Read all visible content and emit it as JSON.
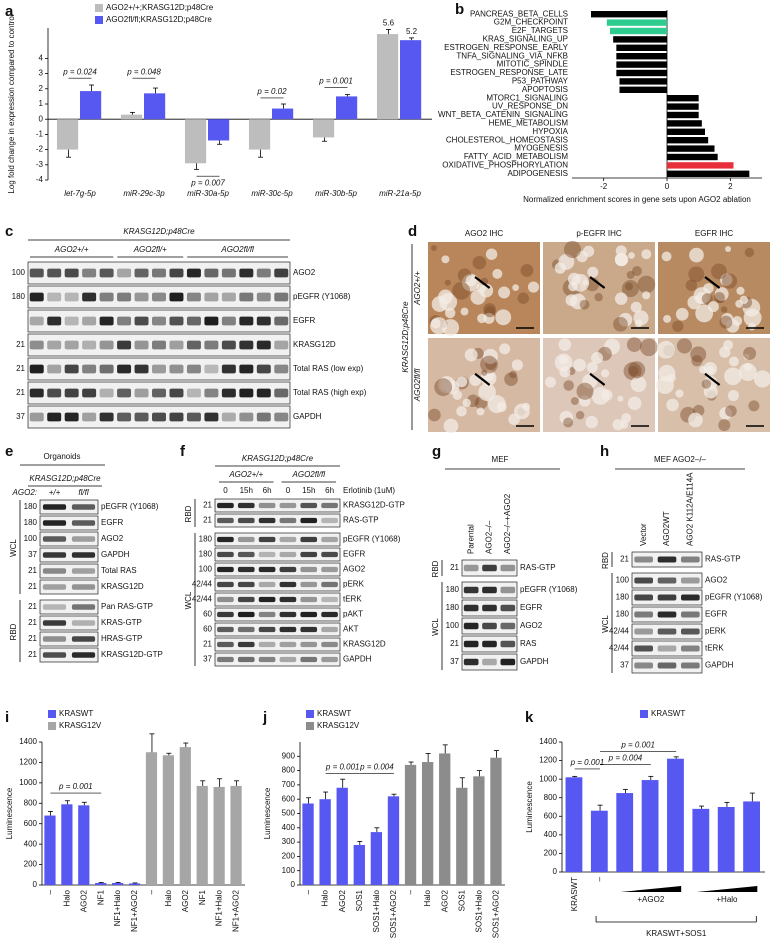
{
  "chart_data": [
    {
      "letter": "a",
      "type": "bar",
      "ylabel": "Log fold change in expression compared to control",
      "categories": [
        "let-7g-5p",
        "miR-29c-3p",
        "miR-30a-5p",
        "miR-30c-5p",
        "miR-30b-5p",
        "miR-21a-5p"
      ],
      "series": [
        {
          "name": "AGO2+/+;KRASG12D;p48Cre",
          "color": "#bdbdbd",
          "values": [
            -2.0,
            0.3,
            -2.9,
            -2.0,
            -1.2,
            5.6
          ],
          "errors": [
            0.5,
            0.15,
            0.4,
            0.5,
            0.25,
            0.3
          ],
          "value_labels": [
            null,
            null,
            null,
            null,
            null,
            "5.6"
          ]
        },
        {
          "name": "AGO2fl/fl;KRASG12D;p48Cre",
          "color": "#5757f2",
          "values": [
            1.85,
            1.7,
            -1.4,
            0.7,
            1.5,
            5.2
          ],
          "errors": [
            0.4,
            0.35,
            0.25,
            0.3,
            0.12,
            0.15
          ],
          "value_labels": [
            null,
            null,
            null,
            null,
            null,
            "5.2"
          ]
        }
      ],
      "ylim": [
        -4,
        6
      ],
      "yticks": [
        -4,
        -3,
        -2,
        -1,
        0,
        1,
        2,
        3,
        4
      ],
      "annotations": [
        "p = 0.024",
        "p = 0.048",
        "p = 0.007",
        "p = 0.02",
        "p = 0.001"
      ]
    },
    {
      "letter": "b",
      "type": "hbar",
      "xlabel": "Normalized enrichment scores in gene sets upon AGO2 ablation",
      "categories": [
        "PANCREAS_BETA_CELLS",
        "G2M_CHECKPOINT",
        "E2F_TARGETS",
        "KRAS_SIGNALING_UP",
        "ESTROGEN_RESPONSE_EARLY",
        "TNFA_SIGNALING_VIA_NFKB",
        "MITOTIC_SPINDLE",
        "ESTROGEN_RESPONSE_LATE",
        "P53_PATHWAY",
        "APOPTOSIS",
        "MTORC1_SIGNALING",
        "UV_RESPONSE_DN",
        "WNT_BETA_CATENIN_SIGNALING",
        "HEME_METABOLISM",
        "HYPOXIA",
        "CHOLESTEROL_HOMEOSTASIS",
        "MYOGENESIS",
        "FATTY_ACID_METABOLISM",
        "OXIDATIVE_PHOSPHORYLATION",
        "ADIPOGENESIS"
      ],
      "values": [
        -2.4,
        -1.9,
        -1.8,
        -1.7,
        -1.6,
        -1.6,
        -1.6,
        -1.6,
        -1.5,
        -1.5,
        1.0,
        1.0,
        1.0,
        1.1,
        1.2,
        1.3,
        1.5,
        1.6,
        2.1,
        2.6
      ],
      "colors": [
        "#000000",
        "#2ecc8e",
        "#2ecc8e",
        "#000000",
        "#000000",
        "#000000",
        "#000000",
        "#000000",
        "#000000",
        "#000000",
        "#000000",
        "#000000",
        "#000000",
        "#000000",
        "#000000",
        "#000000",
        "#000000",
        "#000000",
        "#e8303a",
        "#000000"
      ],
      "xlim": [
        -3,
        3
      ],
      "xticks": [
        -2,
        0,
        2
      ]
    },
    {
      "letter": "i",
      "type": "bar",
      "ylabel": "Luminescence",
      "categories": [
        "–",
        "Halo",
        "AGO2",
        "NF1",
        "NF1+Halo",
        "NF1+AGO2",
        "–",
        "Halo",
        "AGO2",
        "NF1",
        "NF1+Halo",
        "NF1+AGO2"
      ],
      "series": [
        {
          "name": "KRASWT",
          "color": "#5757f2",
          "values": [
            680,
            790,
            780,
            20,
            20,
            15,
            null,
            null,
            null,
            null,
            null,
            null
          ],
          "errors": [
            40,
            35,
            30,
            5,
            5,
            5,
            null,
            null,
            null,
            null,
            null,
            null
          ]
        },
        {
          "name": "KRASG12V",
          "color": "#a6a6a6",
          "values": [
            null,
            null,
            null,
            null,
            null,
            null,
            1300,
            1270,
            1350,
            970,
            960,
            970
          ],
          "errors": [
            null,
            null,
            null,
            null,
            null,
            null,
            180,
            20,
            40,
            50,
            80,
            50
          ]
        }
      ],
      "ylim": [
        0,
        1400
      ],
      "yticks": [
        0,
        200,
        400,
        600,
        800,
        1000,
        1200,
        1400
      ],
      "annotations": [
        "p = 0.001"
      ]
    },
    {
      "letter": "j",
      "type": "bar",
      "ylabel": "Luminescence",
      "categories": [
        "–",
        "Halo",
        "AGO2",
        "SOS1",
        "SOS1+Halo",
        "SOS1+AGO2",
        "–",
        "Halo",
        "AGO2",
        "SOS1",
        "SOS1+Halo",
        "SOS1+AGO2"
      ],
      "series": [
        {
          "name": "KRASWT",
          "color": "#5757f2",
          "values": [
            570,
            600,
            680,
            280,
            370,
            620,
            null,
            null,
            null,
            null,
            null,
            null
          ],
          "errors": [
            40,
            50,
            60,
            25,
            30,
            15,
            null,
            null,
            null,
            null,
            null,
            null
          ]
        },
        {
          "name": "KRASG12V",
          "color": "#8c8c8c",
          "values": [
            null,
            null,
            null,
            null,
            null,
            null,
            840,
            860,
            920,
            680,
            760,
            890
          ],
          "errors": [
            null,
            null,
            null,
            null,
            null,
            null,
            20,
            60,
            60,
            70,
            40,
            50
          ]
        }
      ],
      "ylim": [
        0,
        1000
      ],
      "yticks": [
        0,
        100,
        200,
        300,
        400,
        500,
        600,
        700,
        800,
        900
      ],
      "annotations": [
        "p = 0.001",
        "p = 0.004"
      ]
    },
    {
      "letter": "k",
      "type": "bar",
      "ylabel": "Luminescence",
      "categories": [
        "KRASWT",
        "–",
        null,
        null,
        null,
        null,
        null,
        null
      ],
      "series": [
        {
          "name": "KRASWT",
          "color": "#5757f2",
          "values": [
            1020,
            660,
            850,
            990,
            1220,
            680,
            700,
            760
          ],
          "errors": [
            10,
            60,
            40,
            40,
            20,
            30,
            50,
            90
          ]
        }
      ],
      "ylim": [
        0,
        1400
      ],
      "yticks": [
        0,
        200,
        400,
        600,
        800,
        1000,
        1200,
        1400
      ],
      "annotations": [
        "p = 0.001",
        "p = 0.004",
        "p = 0.001",
        "+AGO2",
        "+Halo",
        "KRASWT+SOS1"
      ]
    }
  ],
  "ihc": {
    "letter": "d",
    "columns": [
      "AGO2 IHC",
      "p-EGFR IHC",
      "EGFR IHC"
    ],
    "rows": [
      "AGO2+/+",
      "AGO2fl/fl"
    ],
    "genotype": "KRASG12D;p48Cre"
  },
  "blots": {
    "c": {
      "letter": "c",
      "header": "KRASG12D;p48Cre",
      "groups": [
        "AGO2+/+",
        "AGO2fl/+",
        "AGO2fl/fl"
      ],
      "sections": [
        {
          "rows": [
            {
              "mw": "100",
              "label": "AGO2"
            },
            {
              "mw": "180",
              "label": "pEGFR (Y1068)"
            },
            {
              "label": "EGFR"
            },
            {
              "mw": "21",
              "label": "KRASG12D"
            },
            {
              "mw": "21",
              "label": "Total RAS (low exp)"
            },
            {
              "mw": "21",
              "label": "Total RAS (high exp)"
            },
            {
              "mw": "37",
              "label": "GAPDH"
            }
          ]
        }
      ]
    },
    "e": {
      "letter": "e",
      "title": "Organoids",
      "header": "KRASG12D;p48Cre",
      "lane_title": "AGO2:",
      "lanes": [
        "+/+",
        "fl/fl"
      ],
      "sections": [
        {
          "name": "WCL",
          "rows": [
            {
              "mw": "180",
              "label": "pEGFR (Y1068)"
            },
            {
              "mw": "180",
              "label": "EGFR"
            },
            {
              "mw": "100",
              "label": "AGO2"
            },
            {
              "mw": "37",
              "label": "GAPDH"
            },
            {
              "mw": "21",
              "label": "Total RAS"
            },
            {
              "mw": "21",
              "label": "KRASG12D"
            }
          ]
        },
        {
          "name": "RBD",
          "rows": [
            {
              "mw": "21",
              "label": "Pan RAS-GTP"
            },
            {
              "mw": "21",
              "label": "KRAS-GTP"
            },
            {
              "mw": "21",
              "label": "HRAS-GTP"
            },
            {
              "mw": "21",
              "label": "KRASG12D-GTP"
            }
          ]
        }
      ]
    },
    "f": {
      "letter": "f",
      "header": "KRASG12D;p48Cre",
      "groups": [
        "AGO2+/+",
        "AGO2fl/fl"
      ],
      "lanes": [
        "0",
        "15h",
        "6h",
        "0",
        "15h",
        "6h"
      ],
      "treatment": "Erlotinib (1uM)",
      "sections": [
        {
          "name": "RBD",
          "rows": [
            {
              "mw": "21",
              "label": "KRASG12D-GTP"
            },
            {
              "mw": "21",
              "label": "RAS-GTP"
            }
          ]
        },
        {
          "name": "WCL",
          "rows": [
            {
              "mw": "180",
              "label": "pEGFR (Y1068)"
            },
            {
              "mw": "180",
              "label": "EGFR"
            },
            {
              "mw": "100",
              "label": "AGO2"
            },
            {
              "mw": "42/44",
              "label": "pERK"
            },
            {
              "mw": "42/44",
              "label": "tERK"
            },
            {
              "mw": "60",
              "label": "pAKT"
            },
            {
              "mw": "60",
              "label": "AKT"
            },
            {
              "mw": "21",
              "label": "KRASG12D"
            },
            {
              "mw": "37",
              "label": "GAPDH"
            }
          ]
        }
      ]
    },
    "g": {
      "letter": "g",
      "title": "MEF",
      "lanes": [
        "Parental",
        "AGO2–/–",
        "AGO2–/–+AGO2"
      ],
      "sections": [
        {
          "name": "RBD",
          "rows": [
            {
              "mw": "21",
              "label": "RAS-GTP"
            }
          ]
        },
        {
          "name": "WCL",
          "rows": [
            {
              "mw": "180",
              "label": "pEGFR (Y1068)"
            },
            {
              "mw": "180",
              "label": "EGFR"
            },
            {
              "mw": "100",
              "label": "AGO2"
            },
            {
              "mw": "21",
              "label": "RAS"
            },
            {
              "mw": "37",
              "label": "GAPDH"
            }
          ]
        }
      ]
    },
    "h": {
      "letter": "h",
      "title": "MEF AGO2–/–",
      "lanes": [
        "Vector",
        "AGO2WT",
        "AGO2 K112A/E114A"
      ],
      "sections": [
        {
          "name": "RBD",
          "rows": [
            {
              "mw": "21",
              "label": "RAS-GTP"
            }
          ]
        },
        {
          "name": "WCL",
          "rows": [
            {
              "mw": "100",
              "label": "AGO2"
            },
            {
              "mw": "180",
              "label": "pEGFR (Y1068)"
            },
            {
              "mw": "180",
              "label": "EGFR"
            },
            {
              "mw": "42/44",
              "label": "pERK"
            },
            {
              "mw": "42/44",
              "label": "tERK"
            },
            {
              "mw": "37",
              "label": "GAPDH"
            }
          ]
        }
      ]
    }
  }
}
